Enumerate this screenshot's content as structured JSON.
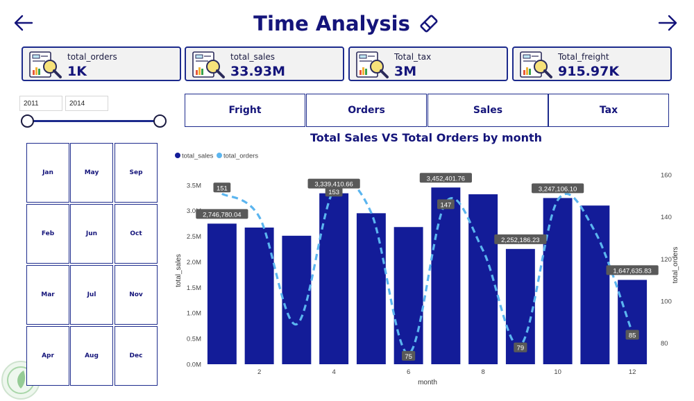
{
  "header": {
    "title": "Time Analysis",
    "back_icon": "arrow-left-icon",
    "forward_icon": "arrow-right-icon",
    "title_icon": "eraser-icon"
  },
  "kpis": [
    {
      "label": "total_orders",
      "value": "1K",
      "icon": "report-chart-magnifier-icon"
    },
    {
      "label": "total_sales",
      "value": "33.93M",
      "icon": "report-chart-magnifier-icon"
    },
    {
      "label": "Total_tax",
      "value": "3M",
      "icon": "report-chart-magnifier-icon"
    },
    {
      "label": "Total_freight",
      "value": "915.97K",
      "icon": "report-chart-magnifier-icon"
    }
  ],
  "year_slider": {
    "start": "2011",
    "end": "2014"
  },
  "month_tiles": [
    "Jan",
    "May",
    "Sep",
    "Feb",
    "Jun",
    "Oct",
    "Mar",
    "Jul",
    "Nov",
    "Apr",
    "Aug",
    "Dec"
  ],
  "metric_buttons": [
    "Fright",
    "Orders",
    "Sales",
    "Tax"
  ],
  "colors": {
    "primary": "#14147a",
    "bar": "#131c98",
    "line": "#5bb5ef",
    "border": "#1c2a8c"
  },
  "chart_data": {
    "type": "bar+line",
    "title": "Total Sales VS Total Orders by month",
    "xlabel": "month",
    "ylabel": "total_sales",
    "y2label": "total_orders",
    "x": [
      1,
      2,
      3,
      4,
      5,
      6,
      7,
      8,
      9,
      10,
      11,
      12
    ],
    "x_ticks": [
      "2",
      "4",
      "6",
      "8",
      "10",
      "12"
    ],
    "y_ticks": [
      "0.0M",
      "0.5M",
      "1.0M",
      "1.5M",
      "2.0M",
      "2.5M",
      "3.0M",
      "3.5M"
    ],
    "y2_ticks": [
      "80",
      "100",
      "120",
      "140",
      "160"
    ],
    "ylim": [
      0,
      3700000
    ],
    "y2lim": [
      70,
      160
    ],
    "legend": {
      "position": "top-left",
      "entries": [
        "total_sales",
        "total_orders"
      ]
    },
    "grid": false,
    "series": [
      {
        "name": "total_sales",
        "type": "bar",
        "values": [
          2746780.04,
          2670000,
          2510000,
          3339410.66,
          2950000,
          2680000,
          3452401.76,
          3320000,
          2252186.23,
          3247106.1,
          3100000,
          1647635.83
        ],
        "data_labels": [
          "2,746,780.04",
          "",
          "",
          "3,339,410.66",
          "",
          "",
          "3,452,401.76",
          "",
          "2,252,186.23",
          "3,247,106.10",
          "",
          "1,647,635.83"
        ]
      },
      {
        "name": "total_orders",
        "type": "line",
        "style": "dashed",
        "values": [
          151,
          140,
          89,
          153,
          142,
          75,
          147,
          124,
          79,
          148,
          133,
          85
        ],
        "data_labels": [
          "151",
          "",
          "",
          "153",
          "",
          "75",
          "147",
          "",
          "79",
          "",
          "",
          "85"
        ]
      }
    ]
  }
}
